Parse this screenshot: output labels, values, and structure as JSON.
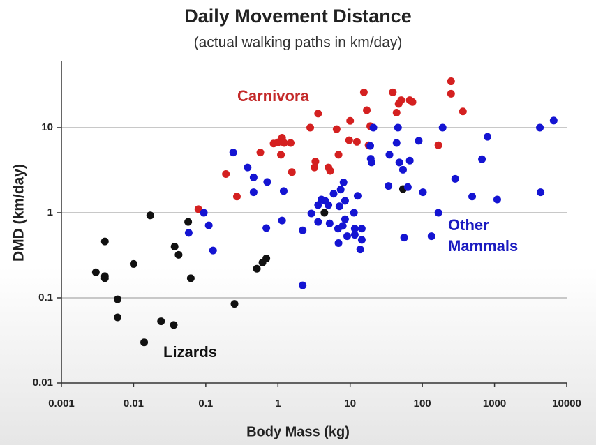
{
  "chart_data": {
    "type": "scatter",
    "title": "Daily Movement Distance",
    "subtitle": "(actual walking paths in km/day)",
    "x_label": "Body Mass (kg)",
    "y_label": "DMD (km/day)",
    "x_log": true,
    "y_log": true,
    "grid": true,
    "xlim": [
      0.001,
      10000
    ],
    "ylim": [
      0.01,
      60
    ],
    "xticks": [
      0.001,
      0.01,
      0.1,
      1,
      10,
      100,
      1000,
      10000
    ],
    "yticks": [
      0.01,
      0.1,
      1,
      10
    ],
    "series": [
      {
        "name": "Lizards",
        "color": "#111111",
        "x": [
          0.003,
          0.004,
          0.004,
          0.004,
          0.006,
          0.006,
          0.01,
          0.017,
          0.014,
          0.024,
          0.036,
          0.037,
          0.042,
          0.057,
          0.062,
          0.25,
          0.51,
          0.69,
          0.61,
          4.4,
          54
        ],
        "values": [
          0.2,
          0.18,
          0.17,
          0.46,
          0.096,
          0.059,
          0.25,
          0.93,
          0.03,
          0.053,
          0.048,
          0.4,
          0.32,
          0.78,
          0.17,
          0.085,
          0.22,
          0.29,
          0.26,
          1.0,
          1.9
        ]
      },
      {
        "name": "Carnivora",
        "color": "#d42020",
        "x": [
          0.079,
          0.19,
          0.27,
          0.57,
          0.87,
          1.0,
          1.14,
          1.22,
          1.5,
          1.1,
          1.56,
          2.8,
          3.2,
          3.3,
          3.6,
          5.0,
          5.3,
          6.5,
          6.9,
          9.7,
          10,
          12.4,
          15.5,
          17,
          19,
          18,
          39,
          44,
          47,
          51,
          67,
          73,
          250,
          250,
          365,
          167
        ],
        "values": [
          1.1,
          2.85,
          1.55,
          5.1,
          6.5,
          6.7,
          7.6,
          6.6,
          6.6,
          4.8,
          3.0,
          10,
          3.4,
          4.0,
          14.6,
          3.4,
          3.1,
          9.6,
          4.8,
          7.1,
          12,
          6.8,
          26,
          16,
          10.4,
          6.2,
          26,
          15,
          19,
          21,
          21,
          20,
          35,
          25,
          15.5,
          6.2
        ]
      },
      {
        "name": "Other Mammals",
        "color": "#1414d2",
        "x": [
          0.094,
          0.058,
          0.11,
          0.126,
          0.24,
          0.38,
          0.46,
          0.46,
          0.69,
          0.71,
          1.14,
          1.2,
          2.2,
          2.2,
          2.9,
          3.6,
          4.0,
          4.5,
          5.0,
          3.6,
          5.2,
          5.9,
          7.1,
          7.4,
          8.1,
          8.5,
          8.5,
          6.8,
          7.9,
          6.9,
          9.1,
          11.6,
          11.3,
          12.7,
          11.6,
          13.8,
          14.5,
          14.5,
          19.3,
          19.8,
          19,
          21,
          34,
          35,
          44,
          46,
          48,
          54,
          63,
          67,
          89,
          102,
          56,
          134,
          167,
          191,
          285,
          490,
          670,
          800,
          1090,
          4250,
          4350,
          6600
        ],
        "values": [
          1.0,
          0.58,
          0.71,
          0.36,
          5.1,
          3.4,
          2.6,
          1.74,
          0.66,
          2.3,
          0.81,
          1.8,
          0.14,
          0.62,
          0.98,
          1.23,
          1.43,
          1.38,
          1.23,
          0.78,
          0.75,
          1.67,
          1.19,
          1.87,
          2.27,
          1.38,
          0.84,
          0.65,
          0.7,
          0.44,
          0.53,
          0.65,
          1.0,
          1.58,
          0.55,
          0.37,
          0.65,
          0.48,
          4.3,
          3.9,
          6.1,
          10,
          2.06,
          4.8,
          6.6,
          10,
          3.9,
          3.2,
          2.0,
          4.1,
          7.0,
          1.74,
          0.51,
          0.53,
          1.0,
          10,
          2.5,
          1.55,
          4.25,
          7.8,
          1.43,
          10,
          1.74,
          12.1
        ]
      }
    ]
  }
}
